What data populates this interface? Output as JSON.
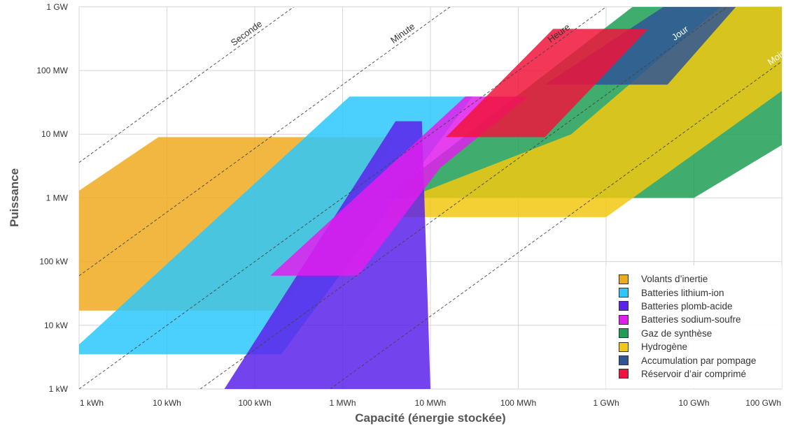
{
  "chart_data": {
    "type": "area",
    "x_scale": "log",
    "y_scale": "log",
    "xlabel": "Capacité (énergie stockée)",
    "ylabel": "Puissance",
    "x_ticks": [
      {
        "value": 1000,
        "label": "1 kWh"
      },
      {
        "value": 10000,
        "label": "10 kWh"
      },
      {
        "value": 100000,
        "label": "100 kWh"
      },
      {
        "value": 1000000,
        "label": "1 MWh"
      },
      {
        "value": 10000000,
        "label": "10 MWh"
      },
      {
        "value": 100000000,
        "label": "100 MWh"
      },
      {
        "value": 1000000000,
        "label": "1 GWh"
      },
      {
        "value": 10000000000,
        "label": "10 GWh"
      },
      {
        "value": 100000000000,
        "label": "100 GWh"
      }
    ],
    "y_ticks": [
      {
        "value": 1000,
        "label": "1 kW"
      },
      {
        "value": 10000,
        "label": "10 kW"
      },
      {
        "value": 100000,
        "label": "100 kW"
      },
      {
        "value": 1000000,
        "label": "1 MW"
      },
      {
        "value": 10000000,
        "label": "10 MW"
      },
      {
        "value": 100000000,
        "label": "100 MW"
      },
      {
        "value": 1000000000,
        "label": "1 GW"
      }
    ],
    "xlim": [
      1000,
      200000000000
    ],
    "ylim": [
      1000,
      1000000000
    ],
    "grid": true,
    "legend_position": "bottom-right",
    "series": [
      {
        "name": "Gaz de synthèse",
        "color": "#1f9d55",
        "opacity": 0.85,
        "points": [
          [
            3000000,
            1000000
          ],
          [
            10000000000,
            1000000
          ],
          [
            200000000000,
            12000000
          ],
          [
            200000000000,
            1000000000
          ],
          [
            2000000000,
            1000000000
          ]
        ]
      },
      {
        "name": "Hydrogène",
        "color": "#f2c811",
        "opacity": 0.85,
        "points": [
          [
            1500000,
            500000
          ],
          [
            1000000000,
            500000
          ],
          [
            200000000000,
            95000000
          ],
          [
            200000000000,
            1000000000
          ],
          [
            20000000000,
            1000000000
          ],
          [
            400000000,
            10000000
          ]
        ]
      },
      {
        "name": "Accumulation par pompage",
        "color": "#2f5597",
        "opacity": 0.85,
        "points": [
          [
            200000000,
            60000000
          ],
          [
            5000000000,
            60000000
          ],
          [
            30000000000,
            1000000000
          ],
          [
            4500000000,
            1000000000
          ]
        ]
      },
      {
        "name": "Volants d’inertie",
        "color": "#eeaa1e",
        "opacity": 0.85,
        "points": [
          [
            1000,
            17000
          ],
          [
            200000,
            17000
          ],
          [
            4000000,
            9000000
          ],
          [
            8000,
            9000000
          ],
          [
            1000,
            1300000
          ]
        ]
      },
      {
        "name": "Batteries lithium-ion",
        "color": "#2cc8fd",
        "opacity": 0.85,
        "points": [
          [
            1000,
            3500
          ],
          [
            200000,
            3500
          ],
          [
            30000000,
            39000000
          ],
          [
            1200000,
            39000000
          ],
          [
            1000,
            5000
          ]
        ]
      },
      {
        "name": "Batteries plomb-acide",
        "color": "#5b22ea",
        "opacity": 0.85,
        "points": [
          [
            1000,
            1000
          ],
          [
            45000,
            1000
          ],
          [
            4000000,
            16000000
          ],
          [
            8000000,
            16000000
          ],
          [
            10000000,
            1000
          ]
        ]
      },
      {
        "name": "Batteries sodium-soufre",
        "color": "#e21ded",
        "opacity": 0.85,
        "points": [
          [
            25000000,
            39000000
          ],
          [
            130000000,
            39000000
          ],
          [
            13000000,
            3000000
          ],
          [
            1500000,
            60000
          ],
          [
            150000,
            60000
          ]
        ]
      },
      {
        "name": "Réservoir d’air comprimé",
        "color": "#f0143c",
        "opacity": 0.85,
        "points": [
          [
            15000000,
            9000000
          ],
          [
            200000000,
            9000000
          ],
          [
            3000000000,
            450000000
          ],
          [
            250000000,
            450000000
          ]
        ]
      }
    ],
    "reference_lines": [
      {
        "label": "Seconde",
        "duration_hours": 0.000278
      },
      {
        "label": "Minute",
        "duration_hours": 0.0167
      },
      {
        "label": "Heure",
        "duration_hours": 1
      },
      {
        "label": "Jour",
        "duration_hours": 24
      },
      {
        "label": "Mois",
        "duration_hours": 720
      }
    ],
    "legend": [
      {
        "label": "Volants d’inertie",
        "color": "#eeaa1e"
      },
      {
        "label": "Batteries lithium-ion",
        "color": "#2cc8fd"
      },
      {
        "label": "Batteries plomb-acide",
        "color": "#5b22ea"
      },
      {
        "label": "Batteries sodium-soufre",
        "color": "#e21ded"
      },
      {
        "label": "Gaz de synthèse",
        "color": "#1f9d55"
      },
      {
        "label": "Hydrogène",
        "color": "#f2c811"
      },
      {
        "label": "Accumulation par pompage",
        "color": "#2f5597"
      },
      {
        "label": "Réservoir d’air comprimé",
        "color": "#f0143c"
      }
    ]
  }
}
